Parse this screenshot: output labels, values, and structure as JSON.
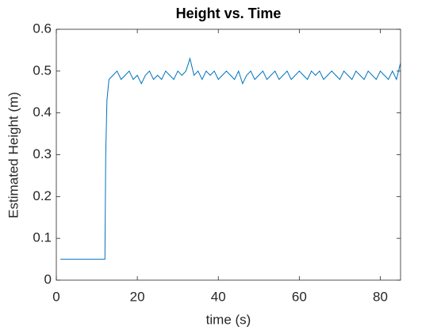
{
  "chart_data": {
    "type": "line",
    "title": "Height vs. Time",
    "x_label": "time (s)",
    "y_label": "Estimated Height (m)",
    "x": [
      1,
      12,
      12.2,
      12.5,
      13,
      14,
      15,
      16,
      17,
      18,
      19,
      20,
      21,
      22,
      23,
      24,
      25,
      26,
      27,
      28,
      29,
      30,
      31,
      32,
      33,
      34,
      35,
      36,
      37,
      38,
      39,
      40,
      41,
      42,
      43,
      44,
      45,
      46,
      47,
      48,
      49,
      50,
      51,
      52,
      53,
      54,
      55,
      56,
      57,
      58,
      59,
      60,
      61,
      62,
      63,
      64,
      65,
      66,
      67,
      68,
      69,
      70,
      71,
      72,
      73,
      74,
      75,
      76,
      77,
      78,
      79,
      80,
      81,
      82,
      83,
      84,
      85
    ],
    "series": [
      {
        "color": "#0072bd",
        "values": [
          0.05,
          0.05,
          0.3,
          0.43,
          0.48,
          0.49,
          0.5,
          0.48,
          0.49,
          0.5,
          0.48,
          0.49,
          0.47,
          0.49,
          0.5,
          0.48,
          0.49,
          0.48,
          0.5,
          0.49,
          0.48,
          0.5,
          0.49,
          0.5,
          0.53,
          0.49,
          0.5,
          0.48,
          0.5,
          0.49,
          0.5,
          0.48,
          0.49,
          0.5,
          0.49,
          0.48,
          0.5,
          0.47,
          0.49,
          0.5,
          0.48,
          0.49,
          0.5,
          0.48,
          0.49,
          0.5,
          0.48,
          0.49,
          0.5,
          0.48,
          0.49,
          0.5,
          0.49,
          0.48,
          0.5,
          0.49,
          0.5,
          0.48,
          0.49,
          0.5,
          0.49,
          0.48,
          0.5,
          0.49,
          0.48,
          0.5,
          0.49,
          0.48,
          0.5,
          0.49,
          0.48,
          0.5,
          0.49,
          0.48,
          0.5,
          0.48,
          0.52
        ]
      }
    ],
    "xlim": [
      0,
      85
    ],
    "ylim": [
      0,
      0.6
    ],
    "xticks": [
      0,
      20,
      40,
      60,
      80
    ],
    "yticks": [
      0,
      0.1,
      0.2,
      0.3,
      0.4,
      0.5,
      0.6
    ],
    "grid": false,
    "box": true
  }
}
